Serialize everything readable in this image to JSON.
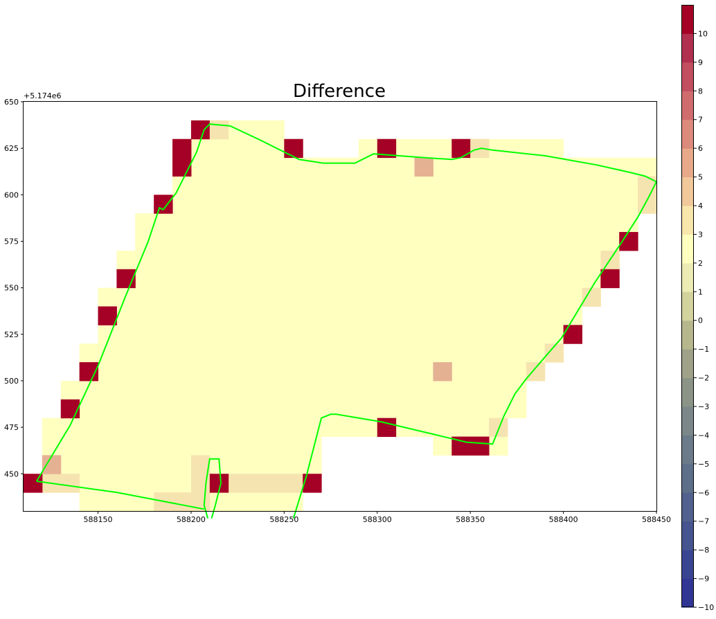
{
  "chart_data": {
    "type": "heatmap",
    "title": "Difference",
    "xlabel": "",
    "ylabel": "",
    "y_offset_text": "+5.174e6",
    "xlim": [
      588110,
      588450
    ],
    "ylim": [
      5174430,
      5174650
    ],
    "x_ticks": [
      588150,
      588200,
      588250,
      588300,
      588350,
      588400,
      588450
    ],
    "y_ticks": [
      450,
      475,
      500,
      525,
      550,
      575,
      600,
      625,
      650
    ],
    "grid": false,
    "cell_size": 10,
    "value_key": {
      "1": 1,
      "2": 2,
      "3": 3,
      "4": 4,
      "A": 10
    },
    "grid_x0": 588110,
    "grid_y_top": 5174650,
    "raster_rows": [
      "..........................................",
      "...........A111...........................",
      "........A11111....A.......1A1111..A211111.",
      "........A111111111111.111111111111111111111111111111111111111.",
      "........1111111111111111111111114111111111111111111111111111111111111111111111111111111111111111111111112",
      "........A111111111111111111111111111111111111111111111112",
      "......A111111111111111111111111111111111111111111111111111112"
    ],
    "cells": [
      [
        588200,
        5174630,
        10
      ],
      [
        588210,
        5174630,
        2
      ],
      [
        588220,
        5174630,
        1
      ],
      [
        588230,
        5174630,
        1
      ],
      [
        588240,
        5174630,
        1
      ],
      [
        588190,
        5174620,
        10
      ],
      [
        588200,
        5174620,
        1
      ],
      [
        588210,
        5174620,
        1
      ],
      [
        588220,
        5174620,
        1
      ],
      [
        588230,
        5174620,
        1
      ],
      [
        588240,
        5174620,
        1
      ],
      [
        588250,
        5174620,
        10
      ],
      [
        588290,
        5174620,
        1
      ],
      [
        588300,
        5174620,
        10
      ],
      [
        588310,
        5174620,
        1
      ],
      [
        588320,
        5174620,
        1
      ],
      [
        588330,
        5174620,
        1
      ],
      [
        588340,
        5174620,
        10
      ],
      [
        588350,
        5174620,
        2
      ],
      [
        588360,
        5174620,
        1
      ],
      [
        588370,
        5174620,
        1
      ],
      [
        588380,
        5174620,
        1
      ],
      [
        588390,
        5174620,
        1
      ],
      [
        588190,
        5174610,
        10
      ],
      [
        588320,
        5174610,
        3
      ],
      [
        588180,
        5174590,
        10
      ],
      [
        588160,
        5174550,
        10
      ],
      [
        588150,
        5174530,
        10
      ],
      [
        588140,
        5174500,
        10
      ],
      [
        588330,
        5174500,
        3
      ],
      [
        588130,
        5174480,
        10
      ],
      [
        588120,
        5174450,
        3
      ],
      [
        588110,
        5174440,
        10
      ],
      [
        588210,
        5174440,
        10
      ],
      [
        588260,
        5174440,
        10
      ],
      [
        588300,
        5174470,
        10
      ],
      [
        588340,
        5174460,
        10
      ],
      [
        588350,
        5174460,
        10
      ],
      [
        588430,
        5174570,
        10
      ],
      [
        588420,
        5174550,
        10
      ],
      [
        588400,
        5174520,
        10
      ]
    ],
    "base_rows": [
      {
        "y": 5174630,
        "x_from": 588200,
        "x_to": 588250,
        "value": 1
      },
      {
        "y": 5174620,
        "x_from": 588190,
        "x_to": 588260,
        "value": 1
      },
      {
        "y": 5174620,
        "x_from": 588290,
        "x_to": 588400,
        "value": 1
      },
      {
        "y": 5174610,
        "x_from": 588190,
        "x_to": 588450,
        "value": 1
      },
      {
        "y": 5174600,
        "x_from": 588190,
        "x_to": 588450,
        "value": 1
      },
      {
        "y": 5174590,
        "x_from": 588180,
        "x_to": 588450,
        "value": 1
      },
      {
        "y": 5174580,
        "x_from": 588170,
        "x_to": 588440,
        "value": 1
      },
      {
        "y": 5174570,
        "x_from": 588170,
        "x_to": 588440,
        "value": 1
      },
      {
        "y": 5174560,
        "x_from": 588160,
        "x_to": 588430,
        "value": 1
      },
      {
        "y": 5174550,
        "x_from": 588160,
        "x_to": 588430,
        "value": 1
      },
      {
        "y": 5174540,
        "x_from": 588150,
        "x_to": 588420,
        "value": 1
      },
      {
        "y": 5174530,
        "x_from": 588150,
        "x_to": 588410,
        "value": 1
      },
      {
        "y": 5174520,
        "x_from": 588150,
        "x_to": 588410,
        "value": 1
      },
      {
        "y": 5174510,
        "x_from": 588140,
        "x_to": 588400,
        "value": 1
      },
      {
        "y": 5174500,
        "x_from": 588140,
        "x_to": 588390,
        "value": 1
      },
      {
        "y": 5174490,
        "x_from": 588130,
        "x_to": 588380,
        "value": 1
      },
      {
        "y": 5174480,
        "x_from": 588130,
        "x_to": 588380,
        "value": 1
      },
      {
        "y": 5174470,
        "x_from": 588120,
        "x_to": 588370,
        "value": 1
      },
      {
        "y": 5174460,
        "x_from": 588120,
        "x_to": 588270,
        "value": 1
      },
      {
        "y": 5174460,
        "x_from": 588330,
        "x_to": 588370,
        "value": 1
      },
      {
        "y": 5174450,
        "x_from": 588120,
        "x_to": 588270,
        "value": 1
      },
      {
        "y": 5174440,
        "x_from": 588110,
        "x_to": 588270,
        "value": 1
      },
      {
        "y": 5174430,
        "x_from": 588140,
        "x_to": 588260,
        "value": 1
      }
    ],
    "edge_cells": [
      [
        588440,
        5174600,
        2
      ],
      [
        588440,
        5174590,
        2
      ],
      [
        588420,
        5174560,
        2
      ],
      [
        588410,
        5174540,
        2
      ],
      [
        588390,
        5174510,
        2
      ],
      [
        588380,
        5174500,
        2
      ],
      [
        588360,
        5174470,
        2
      ],
      [
        588120,
        5174440,
        2
      ],
      [
        588130,
        5174440,
        2
      ],
      [
        588200,
        5174450,
        2
      ],
      [
        588200,
        5174440,
        2
      ],
      [
        588220,
        5174440,
        2
      ],
      [
        588230,
        5174440,
        2
      ],
      [
        588240,
        5174440,
        2
      ],
      [
        588250,
        5174440,
        2
      ],
      [
        588180,
        5174430,
        2
      ],
      [
        588190,
        5174430,
        2
      ],
      [
        588200,
        5174430,
        2
      ]
    ],
    "boundary": [
      [
        588117,
        5174446
      ],
      [
        588135,
        5174476
      ],
      [
        588150,
        5174508
      ],
      [
        588165,
        5174546
      ],
      [
        588177,
        5174575
      ],
      [
        588183,
        5174593
      ],
      [
        588185,
        5174592
      ],
      [
        588192,
        5174601
      ],
      [
        588203,
        5174623
      ],
      [
        588207,
        5174635
      ],
      [
        588210,
        5174638
      ],
      [
        588221,
        5174637
      ],
      [
        588238,
        5174629
      ],
      [
        588258,
        5174619
      ],
      [
        588271,
        5174617
      ],
      [
        588288,
        5174617
      ],
      [
        588298,
        5174622
      ],
      [
        588325,
        5174620
      ],
      [
        588340,
        5174619
      ],
      [
        588345,
        5174620
      ],
      [
        588352,
        5174624
      ],
      [
        588356,
        5174625
      ],
      [
        588362,
        5174624
      ],
      [
        588390,
        5174621
      ],
      [
        588418,
        5174616
      ],
      [
        588436,
        5174612
      ],
      [
        588444,
        5174610
      ],
      [
        588450,
        5174607
      ],
      [
        588446,
        5174599
      ],
      [
        588440,
        5174588
      ],
      [
        588431,
        5174574
      ],
      [
        588417,
        5174553
      ],
      [
        588408,
        5174538
      ],
      [
        588399,
        5174523
      ],
      [
        588392,
        5174515
      ],
      [
        588380,
        5174501
      ],
      [
        588374,
        5174493
      ],
      [
        588368,
        5174481
      ],
      [
        588362,
        5174466
      ],
      [
        588348,
        5174467
      ],
      [
        588302,
        5174478
      ],
      [
        588278,
        5174482
      ],
      [
        588275,
        5174482
      ],
      [
        588270,
        5174480
      ],
      [
        588262,
        5174449
      ],
      [
        588255,
        5174426
      ]
    ],
    "boundary_inner": [
      [
        588209,
        5174426
      ],
      [
        588207,
        5174433
      ],
      [
        588208,
        5174445
      ],
      [
        588210,
        5174458
      ],
      [
        588215,
        5174458
      ],
      [
        588216,
        5174445
      ],
      [
        588213,
        5174433
      ],
      [
        588211,
        5174426
      ]
    ],
    "boundary_bottom": [
      [
        588117,
        5174446
      ],
      [
        588160,
        5174440
      ],
      [
        588207,
        5174431
      ]
    ],
    "colorbar": {
      "min": -10,
      "max": 11,
      "ticks": [
        -10,
        -9,
        -8,
        -7,
        -6,
        -5,
        -4,
        -3,
        -2,
        -1,
        0,
        1,
        2,
        3,
        4,
        5,
        6,
        7,
        8,
        9,
        10
      ],
      "colors": [
        "#313695",
        "#3a4592",
        "#46548f",
        "#52618d",
        "#5e6f8a",
        "#6c7b89",
        "#7b8789",
        "#8c9488",
        "#9fa289",
        "#b7b78e",
        "#d2d39d",
        "#ecebb4",
        "#ffffc0",
        "#f9e6ac",
        "#f1c89a",
        "#e7a98a",
        "#dc8a7b",
        "#d06c6e",
        "#c24e60",
        "#b13050",
        "#a50026"
      ]
    },
    "value_colors": {
      "1": "#ffffc0",
      "2": "#f6e4b0",
      "3": "#e5b193",
      "4": "#e5b193",
      "10": "#a50026"
    },
    "boundary_color": "#00ff00"
  }
}
